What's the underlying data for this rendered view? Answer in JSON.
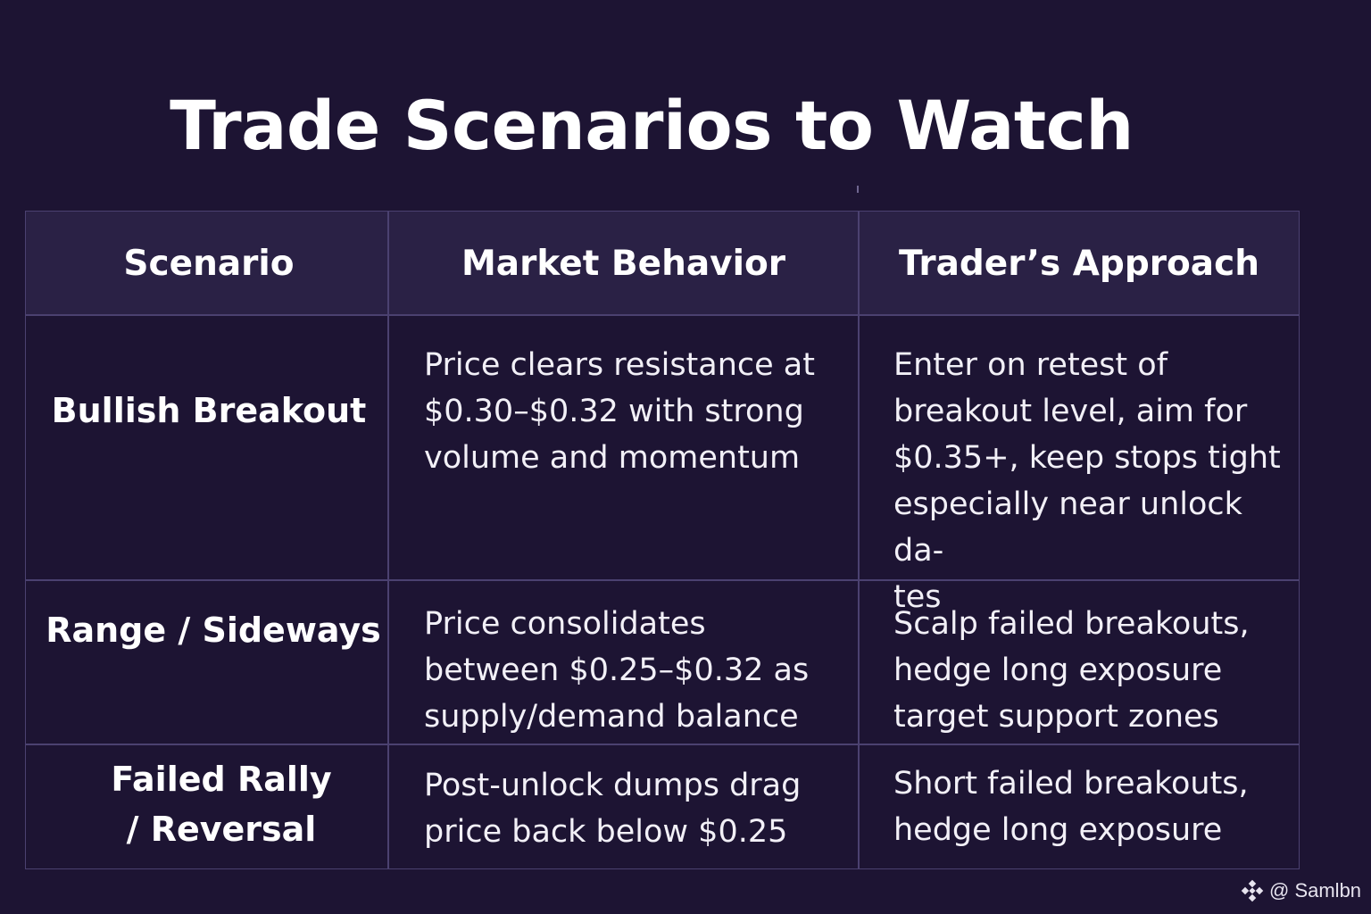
{
  "title": "Trade Scenarios to Watch",
  "table": {
    "headers": [
      "Scenario",
      "Market Behavior",
      "Trader’s Approach"
    ],
    "rows": [
      {
        "scenario": "Bullish Breakout",
        "behavior": "Price clears resistance at\n$0.30–$0.32 with strong\nvolume and momentum",
        "approach": "Enter on retest of\nbreakout level, aim for\n$0.35+, keep stops tight\nespecially near unlock da-\ntes"
      },
      {
        "scenario": "Range / Sideways",
        "behavior": "Price consolidates\nbetween $0.25–$0.32 as\nsupply/demand balance",
        "approach": "Scalp failed breakouts,\nhedge long exposure\ntarget support zones"
      },
      {
        "scenario": "Failed Rally\n/ Reversal",
        "behavior": "Post-unlock dumps drag\nprice back below $0.25",
        "approach": "Short failed breakouts,\nhedge long exposure"
      }
    ]
  },
  "watermark": {
    "icon": "binance-diamond-icon",
    "text": "@ Samlbn"
  },
  "colors": {
    "background": "#1d1433",
    "header_row": "#2a2145",
    "grid": "#4b4170",
    "text": "#ffffff"
  }
}
